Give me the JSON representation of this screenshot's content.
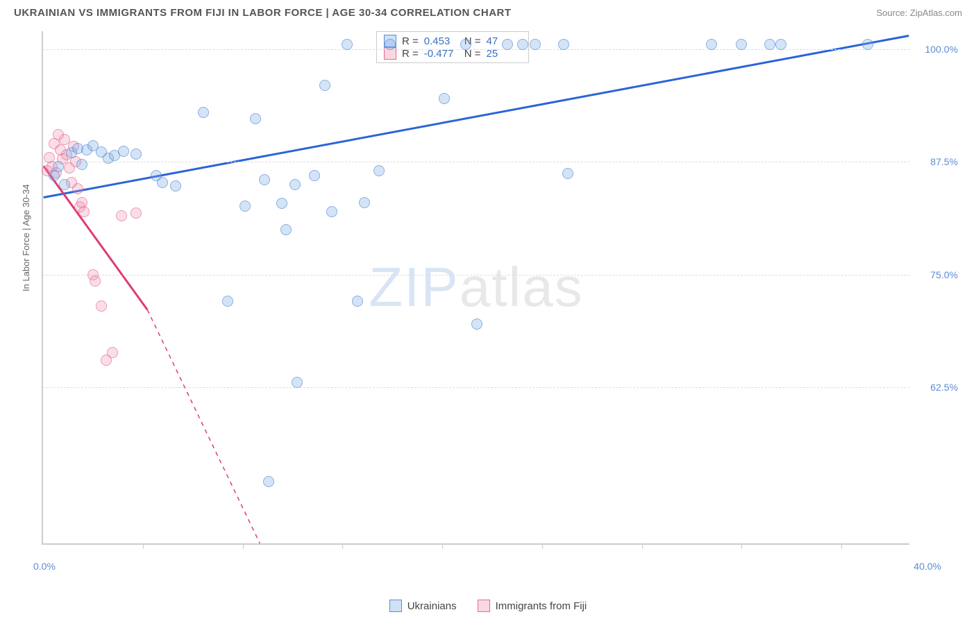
{
  "header": {
    "title": "UKRAINIAN VS IMMIGRANTS FROM FIJI IN LABOR FORCE | AGE 30-34 CORRELATION CHART",
    "source": "Source: ZipAtlas.com"
  },
  "chart": {
    "type": "scatter",
    "y_axis_title": "In Labor Force | Age 30-34",
    "xlim": [
      0.0,
      40.0
    ],
    "ylim": [
      45.0,
      102.0
    ],
    "x_ticks_pct": [
      0.0,
      40.0
    ],
    "x_tick_marks_pct": [
      4.6,
      9.2,
      13.8,
      18.4,
      23.0,
      27.6,
      32.2,
      36.8
    ],
    "y_ticks": [
      {
        "v": 100.0,
        "label": "100.0%"
      },
      {
        "v": 87.5,
        "label": "87.5%"
      },
      {
        "v": 75.0,
        "label": "75.0%"
      },
      {
        "v": 62.5,
        "label": "62.5%"
      }
    ],
    "grid_color": "#dddddd",
    "background_color": "#ffffff",
    "series_blue": {
      "label": "Ukrainians",
      "fill": "rgba(120,170,230,0.45)",
      "stroke": "#5b8bd4",
      "trend_color": "#2b63d8",
      "R": "0.453",
      "N": "47",
      "trend": {
        "x1": 0.0,
        "y1": 83.5,
        "x2": 40.0,
        "y2": 101.5
      },
      "points": [
        {
          "x": 0.5,
          "y": 86.0
        },
        {
          "x": 0.7,
          "y": 87.0
        },
        {
          "x": 1.0,
          "y": 85.0
        },
        {
          "x": 1.3,
          "y": 88.5
        },
        {
          "x": 1.6,
          "y": 89.0
        },
        {
          "x": 1.8,
          "y": 87.2
        },
        {
          "x": 2.0,
          "y": 88.8
        },
        {
          "x": 2.3,
          "y": 89.3
        },
        {
          "x": 2.7,
          "y": 88.6
        },
        {
          "x": 3.0,
          "y": 87.9
        },
        {
          "x": 3.3,
          "y": 88.2
        },
        {
          "x": 3.7,
          "y": 88.7
        },
        {
          "x": 4.3,
          "y": 88.4
        },
        {
          "x": 5.2,
          "y": 86.0
        },
        {
          "x": 5.5,
          "y": 85.2
        },
        {
          "x": 6.1,
          "y": 84.8
        },
        {
          "x": 7.4,
          "y": 93.0
        },
        {
          "x": 8.5,
          "y": 72.0
        },
        {
          "x": 9.3,
          "y": 82.6
        },
        {
          "x": 9.8,
          "y": 92.3
        },
        {
          "x": 10.2,
          "y": 85.5
        },
        {
          "x": 10.4,
          "y": 52.0
        },
        {
          "x": 11.0,
          "y": 82.9
        },
        {
          "x": 11.2,
          "y": 80.0
        },
        {
          "x": 11.6,
          "y": 85.0
        },
        {
          "x": 11.7,
          "y": 63.0
        },
        {
          "x": 12.5,
          "y": 86.0
        },
        {
          "x": 13.0,
          "y": 96.0
        },
        {
          "x": 13.3,
          "y": 82.0
        },
        {
          "x": 14.0,
          "y": 100.5
        },
        {
          "x": 14.5,
          "y": 72.0
        },
        {
          "x": 14.8,
          "y": 83.0
        },
        {
          "x": 15.5,
          "y": 86.5
        },
        {
          "x": 16.0,
          "y": 100.5
        },
        {
          "x": 18.5,
          "y": 94.5
        },
        {
          "x": 19.5,
          "y": 100.5
        },
        {
          "x": 20.0,
          "y": 69.5
        },
        {
          "x": 21.4,
          "y": 100.5
        },
        {
          "x": 22.1,
          "y": 100.5
        },
        {
          "x": 22.7,
          "y": 100.5
        },
        {
          "x": 24.0,
          "y": 100.5
        },
        {
          "x": 24.2,
          "y": 86.2
        },
        {
          "x": 30.8,
          "y": 100.5
        },
        {
          "x": 32.2,
          "y": 100.5
        },
        {
          "x": 33.5,
          "y": 100.5
        },
        {
          "x": 34.0,
          "y": 100.5
        },
        {
          "x": 38.0,
          "y": 100.5
        }
      ]
    },
    "series_pink": {
      "label": "Immigrants from Fiji",
      "fill": "rgba(240,140,170,0.4)",
      "stroke": "#e46b96",
      "trend_color": "#e03a72",
      "R": "-0.477",
      "N": "25",
      "trend_solid": {
        "x1": 0.0,
        "y1": 87.0,
        "x2": 4.8,
        "y2": 71.0
      },
      "trend_dash": {
        "x1": 4.8,
        "y1": 71.0,
        "x2": 10.0,
        "y2": 45.0
      },
      "points": [
        {
          "x": 0.2,
          "y": 86.5
        },
        {
          "x": 0.3,
          "y": 88.0
        },
        {
          "x": 0.4,
          "y": 87.0
        },
        {
          "x": 0.5,
          "y": 89.5
        },
        {
          "x": 0.6,
          "y": 86.3
        },
        {
          "x": 0.7,
          "y": 90.5
        },
        {
          "x": 0.8,
          "y": 88.8
        },
        {
          "x": 0.9,
          "y": 87.8
        },
        {
          "x": 1.0,
          "y": 90.0
        },
        {
          "x": 1.1,
          "y": 88.3
        },
        {
          "x": 1.2,
          "y": 86.8
        },
        {
          "x": 1.3,
          "y": 85.2
        },
        {
          "x": 1.4,
          "y": 89.2
        },
        {
          "x": 1.5,
          "y": 87.5
        },
        {
          "x": 1.6,
          "y": 84.5
        },
        {
          "x": 1.7,
          "y": 82.5
        },
        {
          "x": 1.8,
          "y": 83.0
        },
        {
          "x": 1.9,
          "y": 82.0
        },
        {
          "x": 2.3,
          "y": 75.0
        },
        {
          "x": 2.4,
          "y": 74.3
        },
        {
          "x": 2.7,
          "y": 71.5
        },
        {
          "x": 2.9,
          "y": 65.5
        },
        {
          "x": 3.2,
          "y": 66.3
        },
        {
          "x": 3.6,
          "y": 81.5
        },
        {
          "x": 4.3,
          "y": 81.8
        }
      ]
    }
  },
  "watermark": {
    "zip": "ZIP",
    "atlas": "atlas"
  },
  "bottom_legend": {
    "blue": "Ukrainians",
    "pink": "Immigrants from Fiji"
  },
  "x_labels": {
    "min": "0.0%",
    "max": "40.0%"
  }
}
